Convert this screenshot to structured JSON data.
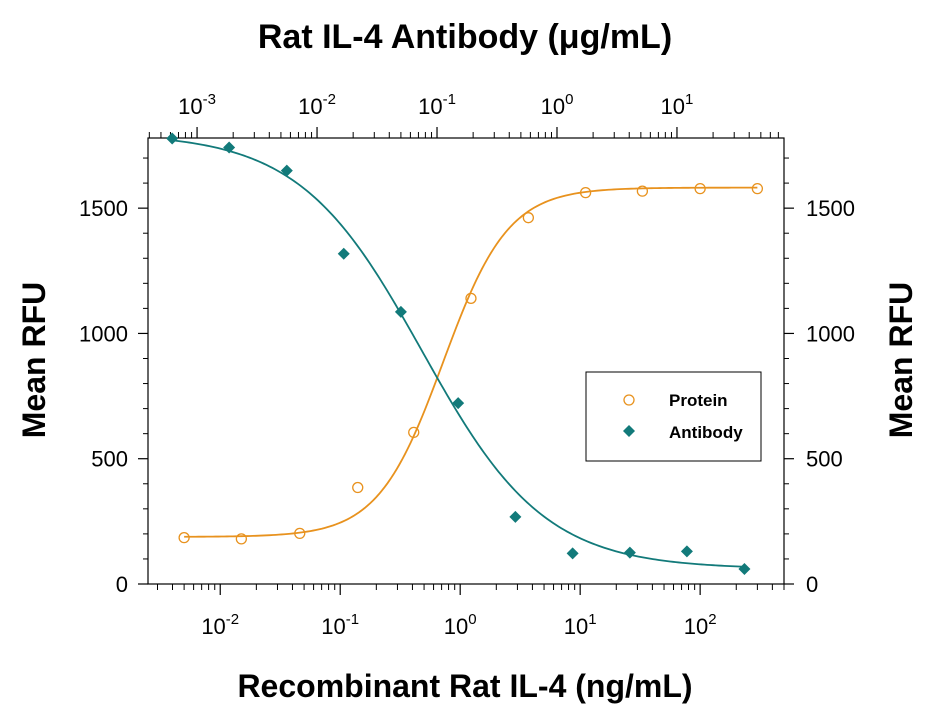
{
  "chart_data": {
    "type": "scatter",
    "title_top": "Rat IL-4 Antibody (μg/mL)",
    "xlabel": "Recombinant Rat IL-4 (ng/mL)",
    "ylabel_left": "Mean RFU",
    "ylabel_right": "Mean RFU",
    "x_scale": "log",
    "xlim": [
      0.0025,
      500
    ],
    "ylim": [
      0,
      1780
    ],
    "y_ticks": [
      0,
      500,
      1000,
      1500
    ],
    "y_tick_labels": [
      "0",
      "500",
      "1000",
      "1500"
    ],
    "x_bottom_ticks": [
      {
        "value": 0.01,
        "base": "10",
        "exp": "-2"
      },
      {
        "value": 0.1,
        "base": "10",
        "exp": "-1"
      },
      {
        "value": 1,
        "base": "10",
        "exp": "0"
      },
      {
        "value": 10,
        "base": "10",
        "exp": "1"
      },
      {
        "value": 100,
        "base": "10",
        "exp": "2"
      }
    ],
    "x_top_scale": "log",
    "x_top_lim": [
      0.00039,
      78
    ],
    "x_top_ticks": [
      {
        "value": 0.001,
        "base": "10",
        "exp": "-3"
      },
      {
        "value": 0.01,
        "base": "10",
        "exp": "-2"
      },
      {
        "value": 0.1,
        "base": "10",
        "exp": "-1"
      },
      {
        "value": 1,
        "base": "10",
        "exp": "0"
      },
      {
        "value": 10,
        "base": "10",
        "exp": "1"
      }
    ],
    "legend": {
      "position": "right-center",
      "entries": [
        "Protein",
        "Antibody"
      ]
    },
    "series": [
      {
        "name": "Protein",
        "axis": "bottom",
        "marker": "open-circle",
        "color": "#e8921e",
        "x": [
          0.005,
          0.015,
          0.046,
          0.14,
          0.41,
          1.23,
          3.7,
          11.1,
          33,
          100,
          300
        ],
        "y": [
          185,
          180,
          202,
          385,
          605,
          1140,
          1462,
          1562,
          1568,
          1578,
          1578
        ],
        "fit": {
          "bottom": 188,
          "top": 1582,
          "ec50": 0.72,
          "hill": 1.6
        }
      },
      {
        "name": "Antibody",
        "axis": "top",
        "marker": "filled-diamond",
        "color": "#127a7a",
        "x": [
          0.00062,
          0.00185,
          0.0056,
          0.0167,
          0.05,
          0.15,
          0.45,
          1.35,
          4.05,
          12.1,
          36.5
        ],
        "y": [
          1778,
          1742,
          1650,
          1318,
          1086,
          722,
          268,
          122,
          125,
          130,
          60
        ],
        "fit": {
          "bottom": 60,
          "top": 1800,
          "ec50": 0.075,
          "hill": -0.85
        }
      }
    ]
  }
}
